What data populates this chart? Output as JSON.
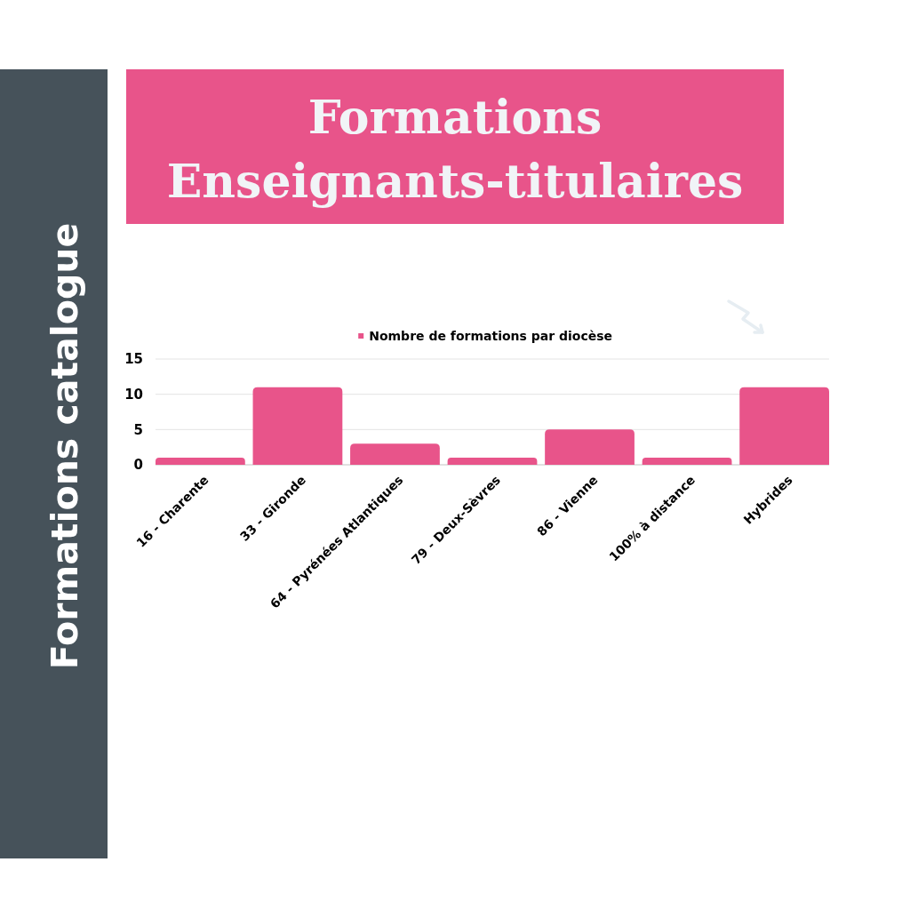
{
  "chart_data": {
    "type": "bar",
    "title": "Formations Enseignants-titulaires",
    "subtitle": "Formations catalogue",
    "categories": [
      "16 - Charente",
      "33 - Gironde",
      "64 - Pyrénées Atlantiques",
      "79 - Deux-Sèvres",
      "86 - Vienne",
      "100% à distance",
      "Hybrides"
    ],
    "series": [
      {
        "name": "Nombre de formations par diocèse",
        "color": "#e8548a",
        "values": [
          1,
          11,
          3,
          1,
          5,
          1,
          11
        ]
      }
    ],
    "ylim": [
      0,
      15
    ],
    "yticks": [
      0,
      5,
      10,
      15
    ],
    "grid": "y",
    "legend": "top"
  }
}
